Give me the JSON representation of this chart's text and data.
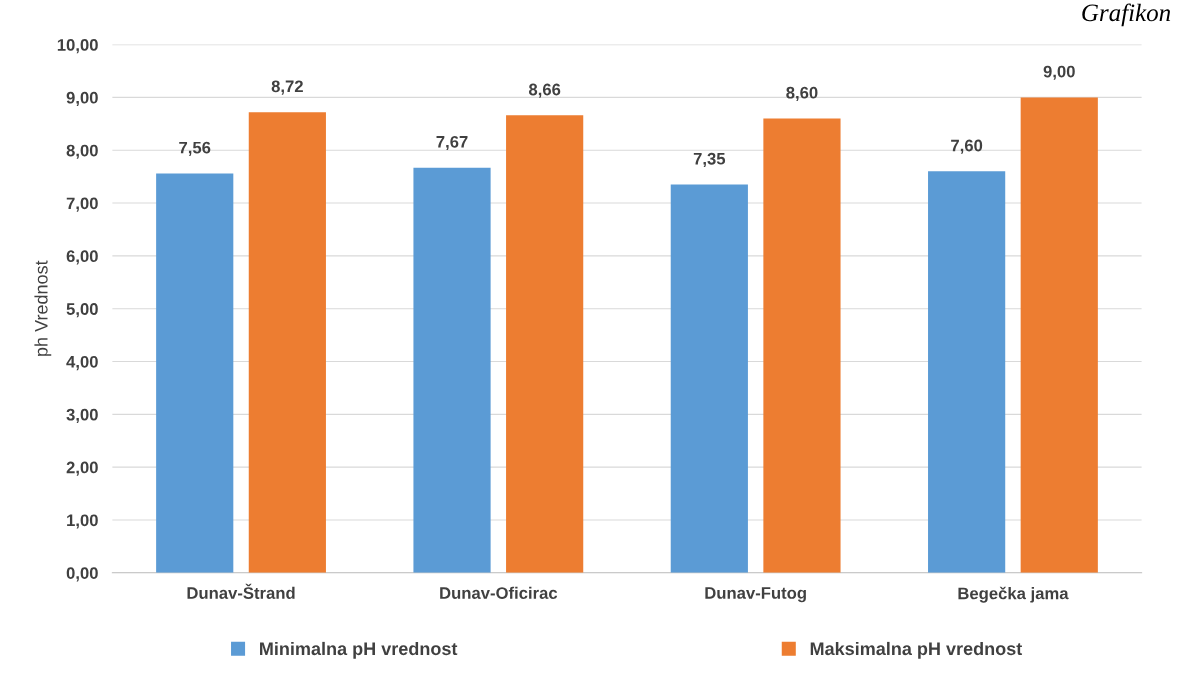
{
  "chart_data": {
    "type": "bar",
    "ylabel": "ph Vrednost",
    "categories": [
      "Dunav-Štrand",
      "Dunav-Oficirac",
      "Dunav-Futog",
      "Begečka jama"
    ],
    "series": [
      {
        "name": "Minimalna pH vrednost",
        "color": "#5b9bd5",
        "values": [
          7.56,
          7.67,
          7.35,
          7.6
        ],
        "value_labels": [
          "7,56",
          "7,67",
          "7,35",
          "7,60"
        ]
      },
      {
        "name": "Maksimalna pH vrednost",
        "color": "#ed7d31",
        "values": [
          8.72,
          8.66,
          8.6,
          9.0
        ],
        "value_labels": [
          "8,72",
          "8,66",
          "8,60",
          "9,00"
        ]
      }
    ],
    "ylim": [
      0,
      10
    ],
    "yticks": [
      {
        "value": 0,
        "label": "0,00"
      },
      {
        "value": 1,
        "label": "1,00"
      },
      {
        "value": 2,
        "label": "2,00"
      },
      {
        "value": 3,
        "label": "3,00"
      },
      {
        "value": 4,
        "label": "4,00"
      },
      {
        "value": 5,
        "label": "5,00"
      },
      {
        "value": 6,
        "label": "6,00"
      },
      {
        "value": 7,
        "label": "7,00"
      },
      {
        "value": 8,
        "label": "8,00"
      },
      {
        "value": 9,
        "label": "9,00"
      },
      {
        "value": 10,
        "label": "10,00"
      }
    ],
    "grid": "y",
    "legend": "bottom",
    "annotations": [
      "Grafikon"
    ]
  }
}
